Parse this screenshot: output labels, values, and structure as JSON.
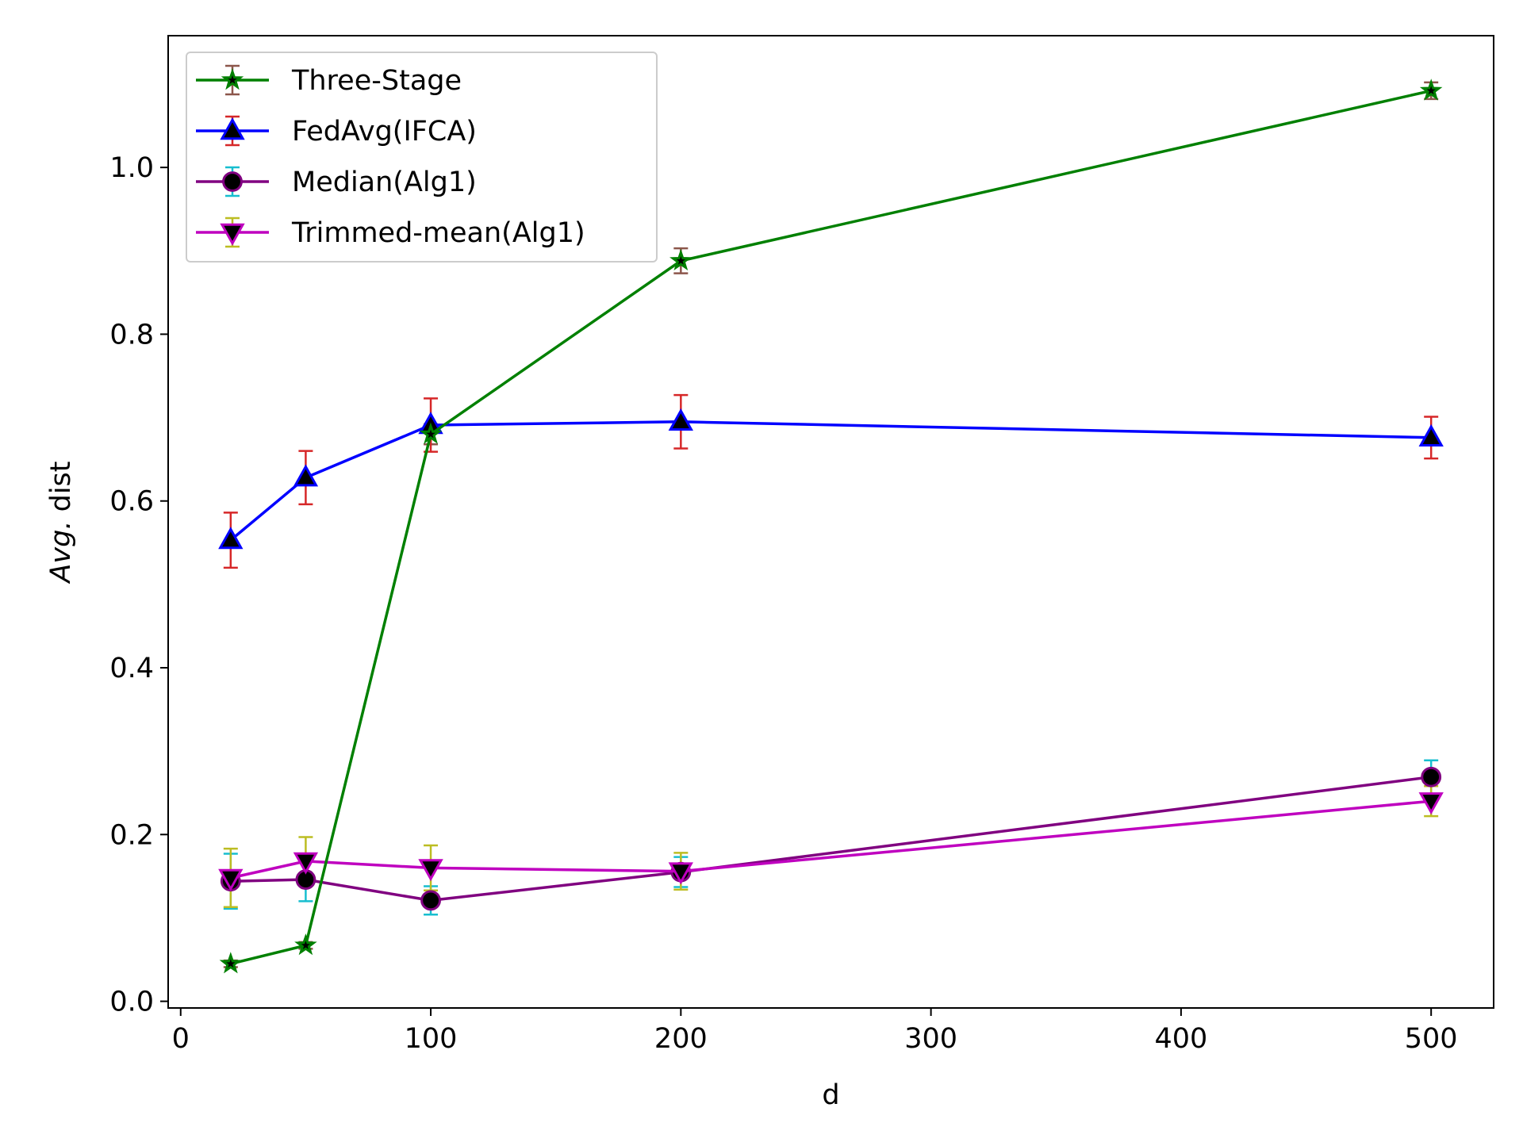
{
  "chart_data": {
    "type": "line",
    "xlabel": "d",
    "ylabel_italic": "Avg.",
    "ylabel_rest": " dist",
    "xlim": [
      -5,
      525
    ],
    "ylim": [
      -0.008,
      1.158
    ],
    "xticks": [
      0,
      100,
      200,
      300,
      400,
      500
    ],
    "xtick_labels": [
      "0",
      "100",
      "200",
      "300",
      "400",
      "500"
    ],
    "yticks": [
      0.0,
      0.2,
      0.4,
      0.6,
      0.8,
      1.0
    ],
    "ytick_labels": [
      "0.0",
      "0.2",
      "0.4",
      "0.6",
      "0.8",
      "1.0"
    ],
    "grid": false,
    "legend_position": "top-left",
    "x": [
      20,
      50,
      100,
      200,
      500
    ],
    "series": [
      {
        "name": "Three-Stage",
        "values": [
          0.045,
          0.067,
          0.68,
          0.888,
          1.092
        ],
        "errors": [
          0.004,
          0.004,
          0.012,
          0.015,
          0.01
        ],
        "line_color": "#008000",
        "err_color": "#8c564b",
        "marker": "star",
        "marker_face": "#000000",
        "marker_edge": "#008000"
      },
      {
        "name": "FedAvg(IFCA)",
        "values": [
          0.553,
          0.628,
          0.691,
          0.695,
          0.676
        ],
        "errors": [
          0.033,
          0.032,
          0.032,
          0.032,
          0.025
        ],
        "line_color": "#0000ff",
        "err_color": "#d62728",
        "marker": "triangle-up",
        "marker_face": "#000000",
        "marker_edge": "#0000ff"
      },
      {
        "name": "Median(Alg1)",
        "values": [
          0.144,
          0.146,
          0.121,
          0.155,
          0.269
        ],
        "errors": [
          0.033,
          0.026,
          0.017,
          0.018,
          0.02
        ],
        "line_color": "#800080",
        "err_color": "#17becf",
        "marker": "circle",
        "marker_face": "#000000",
        "marker_edge": "#800080"
      },
      {
        "name": "Trimmed-mean(Alg1)",
        "values": [
          0.148,
          0.168,
          0.16,
          0.156,
          0.24
        ],
        "errors": [
          0.035,
          0.029,
          0.027,
          0.022,
          0.018
        ],
        "line_color": "#bf00bf",
        "err_color": "#bcbd22",
        "marker": "triangle-down",
        "marker_face": "#000000",
        "marker_edge": "#bf00bf"
      }
    ]
  }
}
